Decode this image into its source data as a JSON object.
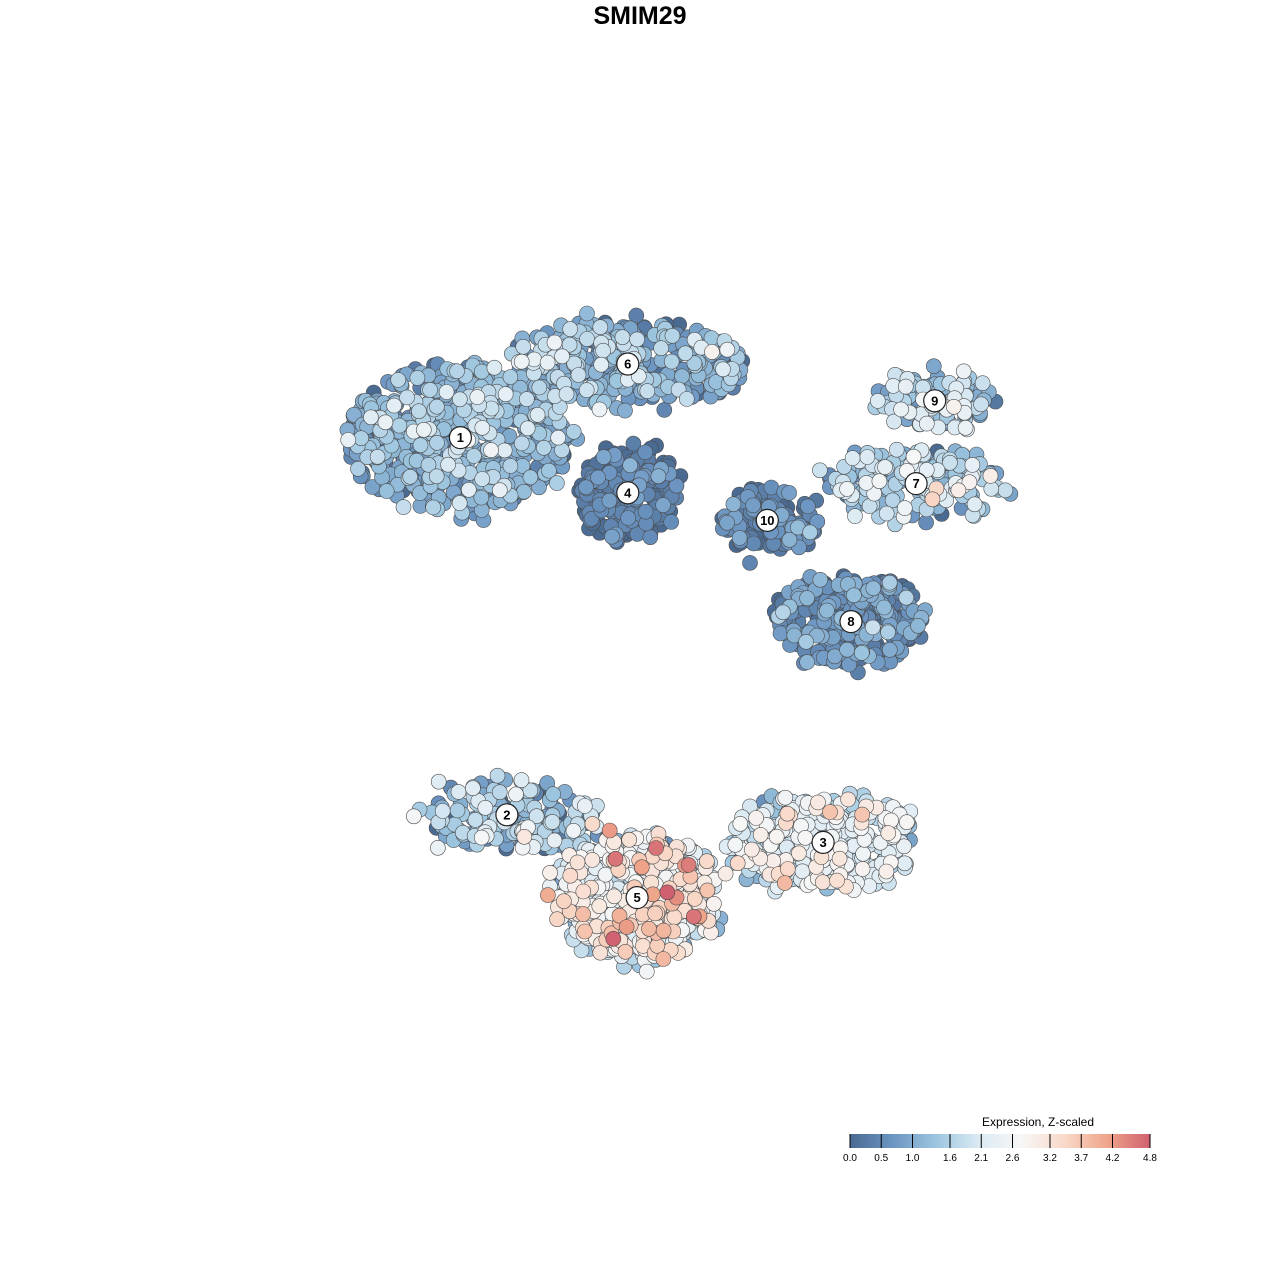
{
  "chart_data": {
    "type": "scatter",
    "title": "SMIM29",
    "xlabel": "",
    "ylabel": "",
    "grid": false,
    "legend": {
      "title": "Expression, Z-scaled",
      "placement": "bottom-right",
      "range": [
        0.0,
        4.8
      ],
      "ticks": [
        "0.0",
        "0.5",
        "1.0",
        "1.6",
        "2.1",
        "2.6",
        "3.2",
        "3.7",
        "4.2",
        "4.8"
      ],
      "colors": [
        "#4a6a92",
        "#6c95c2",
        "#9cc5df",
        "#dbeaf3",
        "#f7f7f7",
        "#f9d9c9",
        "#efa58a",
        "#d06070"
      ]
    },
    "xlim": [
      0,
      100
    ],
    "ylim": [
      0,
      100
    ],
    "clusters": [
      {
        "label": "1",
        "x": 28,
        "y": 72,
        "n": 620,
        "rx": 12,
        "ry": 8,
        "mean": 1.0,
        "sd": 0.55
      },
      {
        "label": "2",
        "x": 33,
        "y": 31,
        "n": 190,
        "rx": 9,
        "ry": 3.5,
        "mean": 1.2,
        "sd": 0.7
      },
      {
        "label": "3",
        "x": 67,
        "y": 28,
        "n": 380,
        "rx": 10,
        "ry": 5,
        "mean": 1.9,
        "sd": 0.7
      },
      {
        "label": "4",
        "x": 46,
        "y": 66,
        "n": 260,
        "rx": 5,
        "ry": 5,
        "mean": 0.2,
        "sd": 0.35
      },
      {
        "label": "5",
        "x": 47,
        "y": 22,
        "n": 560,
        "rx": 9,
        "ry": 7,
        "mean": 2.4,
        "sd": 0.8
      },
      {
        "label": "6",
        "x": 46,
        "y": 80,
        "n": 340,
        "rx": 13,
        "ry": 4.5,
        "mean": 1.0,
        "sd": 0.6
      },
      {
        "label": "7",
        "x": 77,
        "y": 67,
        "n": 200,
        "rx": 10,
        "ry": 3.5,
        "mean": 1.4,
        "sd": 0.7
      },
      {
        "label": "8",
        "x": 70,
        "y": 52,
        "n": 270,
        "rx": 8,
        "ry": 5,
        "mean": 0.5,
        "sd": 0.5
      },
      {
        "label": "9",
        "x": 79,
        "y": 76,
        "n": 120,
        "rx": 6,
        "ry": 2.8,
        "mean": 1.4,
        "sd": 0.6
      },
      {
        "label": "10",
        "x": 61,
        "y": 63,
        "n": 140,
        "rx": 5,
        "ry": 3.2,
        "mean": 0.3,
        "sd": 0.4
      }
    ]
  }
}
